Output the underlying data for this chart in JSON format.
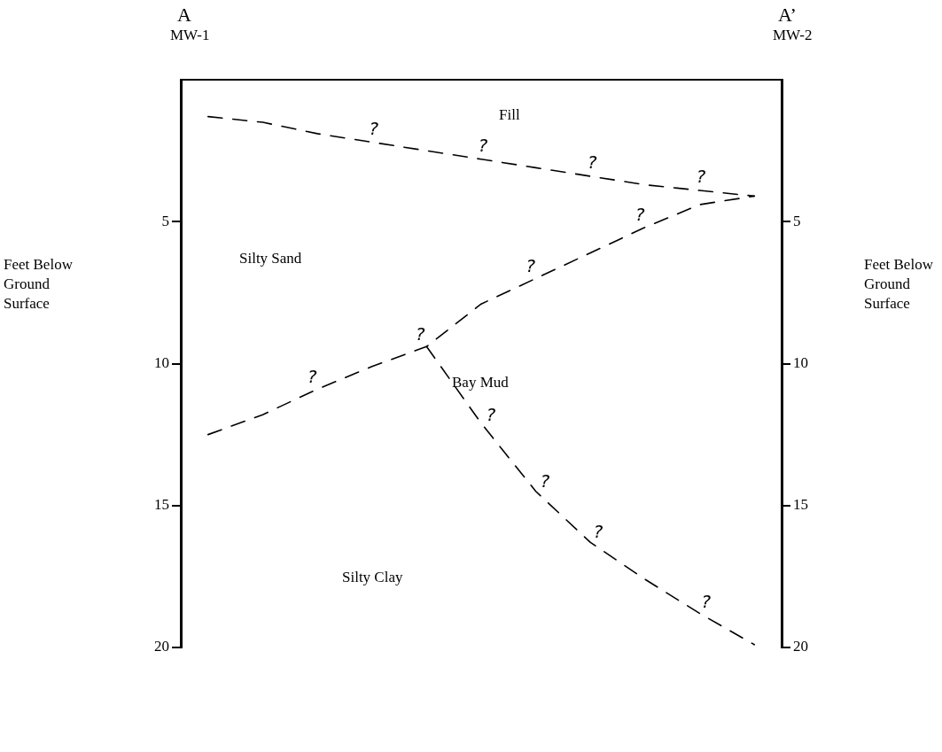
{
  "chart_data": {
    "type": "line",
    "annotations": [
      "A",
      "MW-1",
      "A’",
      "MW-2",
      "Fill",
      "Silty Sand",
      "Bay Mud",
      "Silty Clay",
      "Feet Below Ground Surface",
      "Feet Below Ground Surface"
    ],
    "categories": [
      null,
      null,
      null,
      null,
      null,
      null,
      null,
      null,
      null,
      null,
      null
    ],
    "series": [
      {
        "color": "#000000",
        "values": [
          1.3,
          1.5,
          1.9,
          2.2,
          2.5,
          2.8,
          3.1,
          3.4,
          3.7,
          3.9,
          4.1
        ],
        "value_labels": [
          null,
          null,
          null,
          "?",
          null,
          "?",
          null,
          "?",
          null,
          "?",
          null
        ]
      },
      {
        "color": "#000000",
        "values": [
          12.5,
          11.8,
          10.9,
          10.1,
          9.4,
          7.9,
          7.0,
          6.1,
          5.2,
          4.4,
          4.1
        ],
        "value_labels": [
          null,
          null,
          "?",
          null,
          "?",
          null,
          "?",
          null,
          "?",
          null,
          null
        ]
      },
      {
        "color": "#000000",
        "values": [
          null,
          null,
          null,
          null,
          9.4,
          12.1,
          14.5,
          16.3,
          17.6,
          18.8,
          19.9
        ],
        "value_labels": [
          null,
          null,
          null,
          null,
          null,
          "?",
          "?",
          "?",
          null,
          "?",
          null
        ]
      }
    ],
    "ylim": [
      20,
      0
    ],
    "yticks": [
      5,
      10,
      15,
      20
    ],
    "y2lim": [
      20,
      0
    ],
    "y2ticks": [
      5,
      10,
      15,
      20
    ],
    "ref_lines": [
      {
        "axis": "y",
        "value": 0,
        "color": "#000000"
      }
    ],
    "legend": false,
    "grid": false,
    "tick_labels": "y",
    "marker": "none",
    "line_style": "dashed"
  }
}
